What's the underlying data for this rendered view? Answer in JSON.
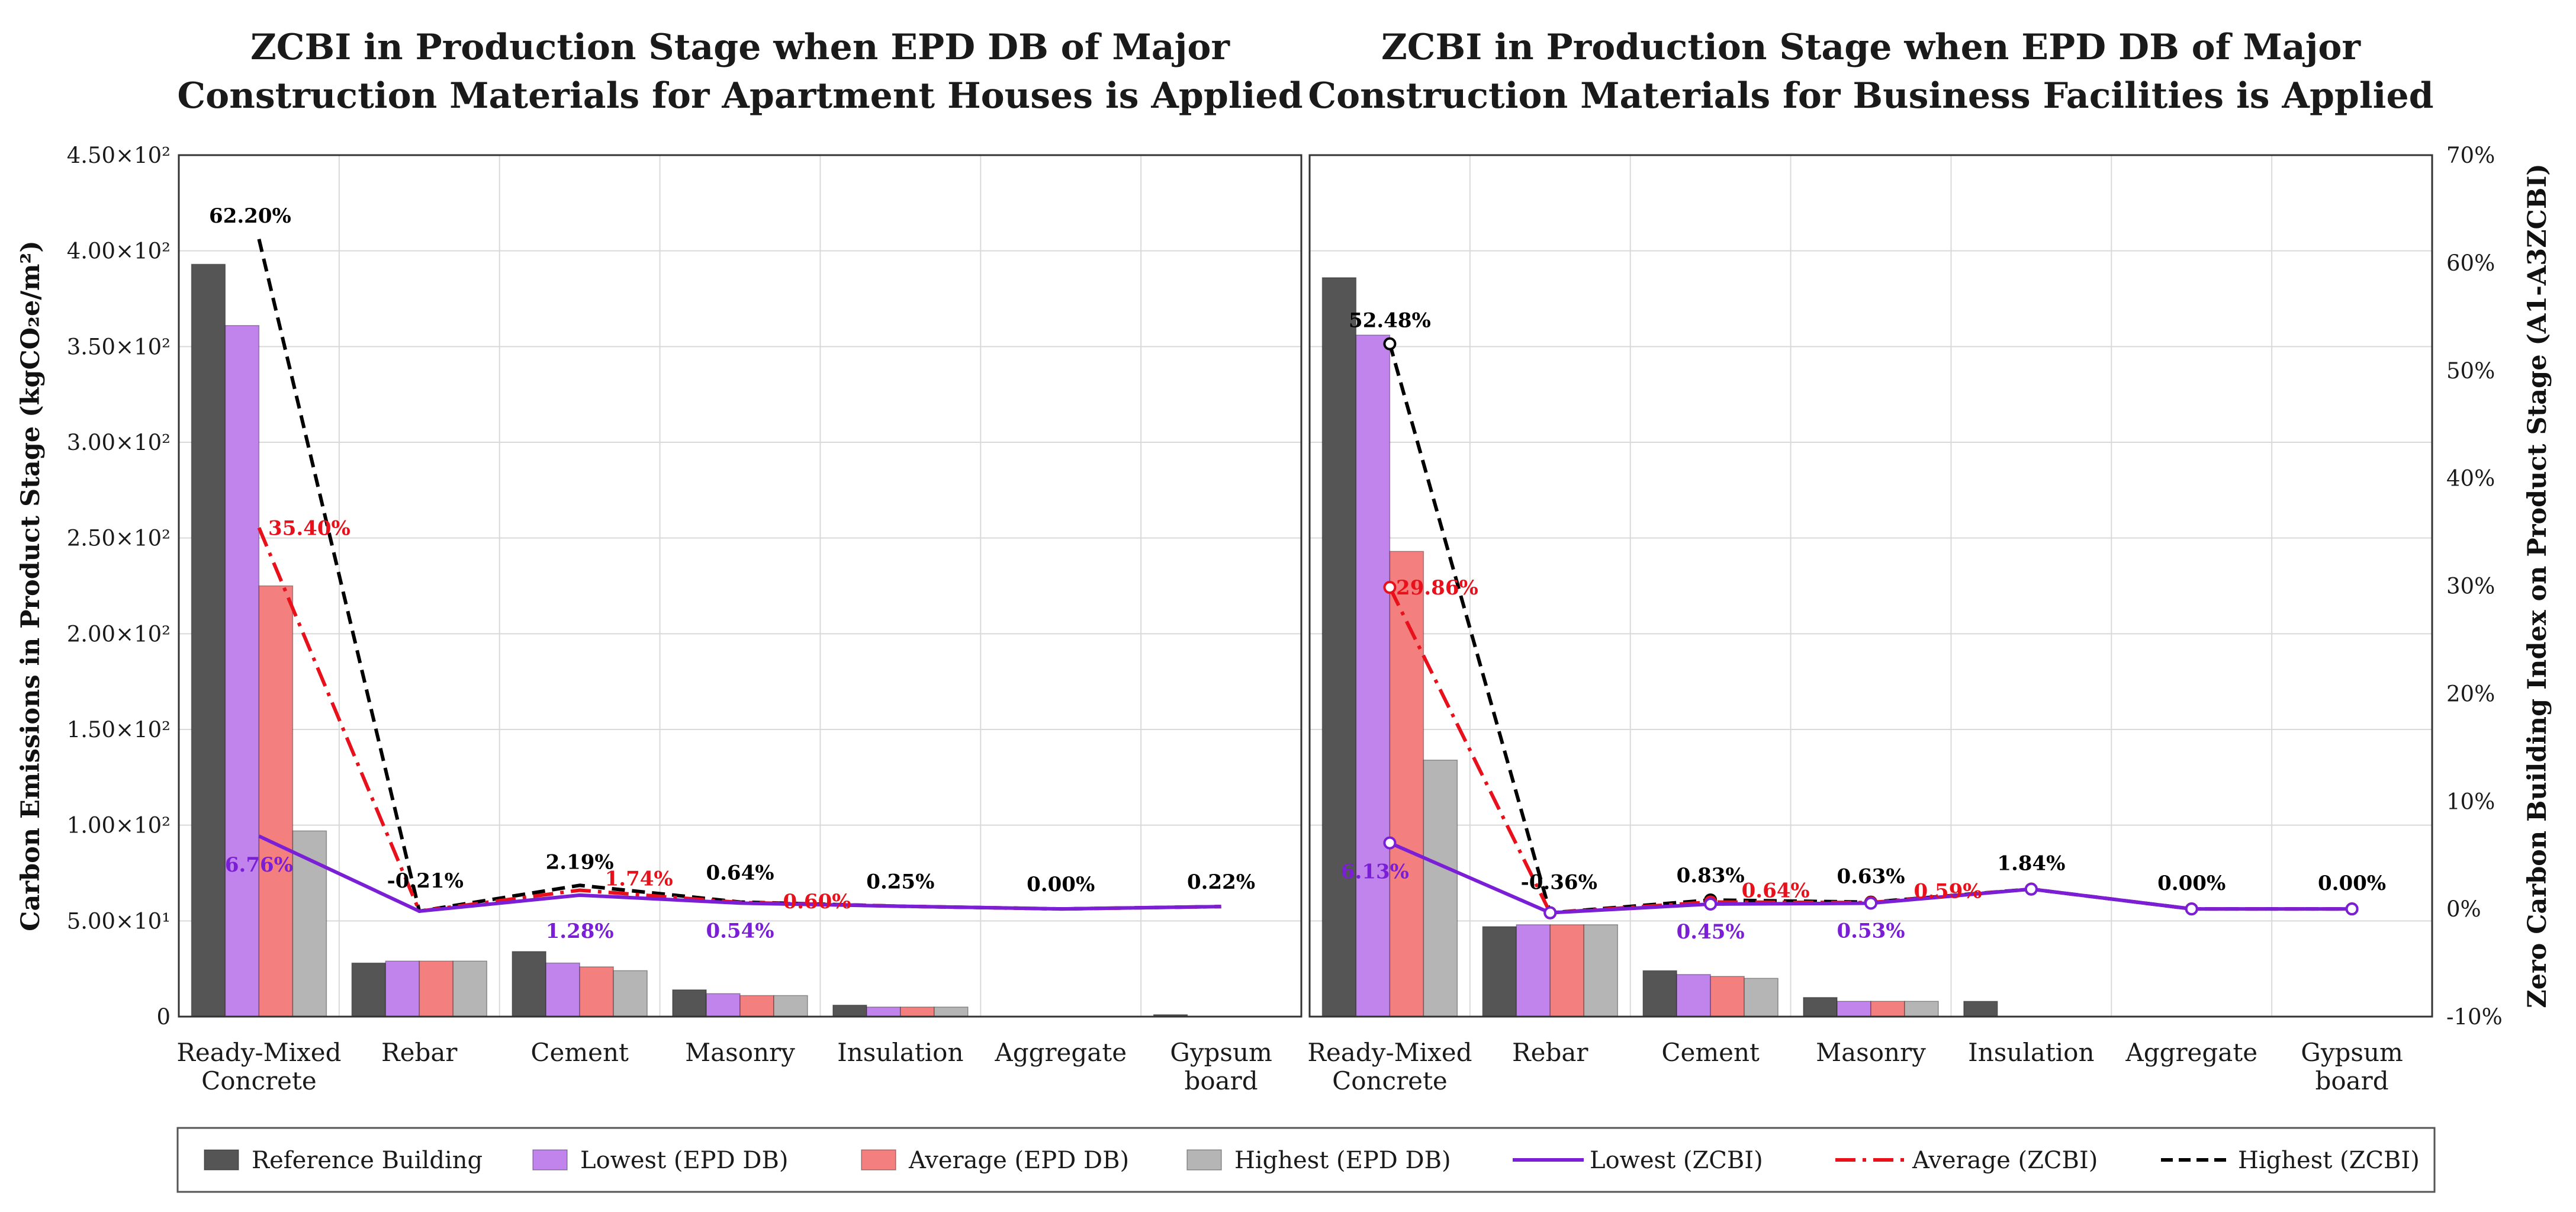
{
  "chart_data": {
    "type": "bar+line",
    "y_axis_left": {
      "label": "Carbon Emissions in Product Stage (kgCO₂e/m²)",
      "ylim": [
        0,
        450
      ],
      "ticks": [
        {
          "value": 0,
          "label": "0"
        },
        {
          "value": 50,
          "label": "5.00×10¹"
        },
        {
          "value": 100,
          "label": "1.00×10²"
        },
        {
          "value": 150,
          "label": "1.50×10²"
        },
        {
          "value": 200,
          "label": "2.00×10²"
        },
        {
          "value": 250,
          "label": "2.50×10²"
        },
        {
          "value": 300,
          "label": "3.00×10²"
        },
        {
          "value": 350,
          "label": "3.50×10²"
        },
        {
          "value": 400,
          "label": "4.00×10²"
        },
        {
          "value": 450,
          "label": "4.50×10²"
        }
      ]
    },
    "y_axis_right": {
      "label": "Zero Carbon Building Index on Product Stage (A1-A3ZCBI)",
      "ylim": [
        -10,
        70
      ],
      "ticks": [
        {
          "value": -10,
          "label": "-10%"
        },
        {
          "value": 0,
          "label": "0%"
        },
        {
          "value": 10,
          "label": "10%"
        },
        {
          "value": 20,
          "label": "20%"
        },
        {
          "value": 30,
          "label": "30%"
        },
        {
          "value": 40,
          "label": "40%"
        },
        {
          "value": 50,
          "label": "50%"
        },
        {
          "value": 60,
          "label": "60%"
        },
        {
          "value": 70,
          "label": "70%"
        }
      ]
    },
    "categories": [
      [
        "Ready-Mixed",
        "Concrete"
      ],
      [
        "Rebar"
      ],
      [
        "Cement"
      ],
      [
        "Masonry"
      ],
      [
        "Insulation"
      ],
      [
        "Aggregate"
      ],
      [
        "Gypsum",
        "board"
      ]
    ],
    "colors": {
      "reference": "#555555",
      "lowest_db": "#c184ec",
      "average_db": "#f47f7f",
      "highest_db": "#b5b5b5",
      "lowest_zcbi": "#7a1fd6",
      "average_zcbi": "#e8101a",
      "highest_zcbi": "#000000"
    },
    "legend": [
      {
        "key": "reference",
        "kind": "bar",
        "label": "Reference Building"
      },
      {
        "key": "lowest_db",
        "kind": "bar",
        "label": "Lowest (EPD DB)"
      },
      {
        "key": "average_db",
        "kind": "bar",
        "label": "Average (EPD DB)"
      },
      {
        "key": "highest_db",
        "kind": "bar",
        "label": "Highest (EPD DB)"
      },
      {
        "key": "lowest_zcbi",
        "kind": "solid",
        "label": "Lowest (ZCBI)"
      },
      {
        "key": "average_zcbi",
        "kind": "dashdot",
        "label": "Average (ZCBI)"
      },
      {
        "key": "highest_zcbi",
        "kind": "dash",
        "label": "Highest (ZCBI)"
      }
    ],
    "panels": [
      {
        "title_lines": [
          "ZCBI in Production Stage when EPD DB of Major",
          "Construction Materials for Apartment Houses is Applied"
        ],
        "bars": {
          "reference": [
            393,
            28,
            34,
            14,
            6,
            0,
            1
          ],
          "lowest_db": [
            361,
            29,
            28,
            12,
            5,
            0,
            0
          ],
          "average_db": [
            225,
            29,
            26,
            11,
            5,
            0,
            0
          ],
          "highest_db": [
            97,
            29,
            24,
            11,
            5,
            0,
            0
          ]
        },
        "zcbi": {
          "lowest": [
            6.76,
            -0.21,
            1.28,
            0.54,
            0.25,
            0.0,
            0.22
          ],
          "average": [
            35.4,
            -0.21,
            1.74,
            0.6,
            0.25,
            0.0,
            0.22
          ],
          "highest": [
            62.2,
            -0.21,
            2.19,
            0.64,
            0.25,
            0.0,
            0.22
          ]
        },
        "markers": false,
        "labels": [
          {
            "text": "62.20%",
            "cat": 0,
            "value": 62.2,
            "color": "highest_zcbi",
            "dx": -15,
            "dy": -28
          },
          {
            "text": "35.40%",
            "cat": 0,
            "value": 35.4,
            "color": "average_zcbi",
            "dx": 85,
            "dy": 12
          },
          {
            "text": "6.76%",
            "cat": 0,
            "value": 6.76,
            "color": "lowest_zcbi",
            "dx": 0,
            "dy": 60
          },
          {
            "text": "-0.21%",
            "cat": 1,
            "value": -0.21,
            "color": "highest_zcbi",
            "dx": 10,
            "dy": -40
          },
          {
            "text": "2.19%",
            "cat": 2,
            "value": 2.19,
            "color": "highest_zcbi",
            "dx": 0,
            "dy": -28
          },
          {
            "text": "1.74%",
            "cat": 2,
            "value": 1.74,
            "color": "average_zcbi",
            "dx": 100,
            "dy": -8
          },
          {
            "text": "1.28%",
            "cat": 2,
            "value": 1.28,
            "color": "lowest_zcbi",
            "dx": 0,
            "dy": 72
          },
          {
            "text": "0.64%",
            "cat": 3,
            "value": 0.64,
            "color": "highest_zcbi",
            "dx": 0,
            "dy": -38
          },
          {
            "text": "0.60%",
            "cat": 3,
            "value": 0.6,
            "color": "average_zcbi",
            "dx": 130,
            "dy": 10
          },
          {
            "text": "0.54%",
            "cat": 3,
            "value": 0.54,
            "color": "lowest_zcbi",
            "dx": 0,
            "dy": 58
          },
          {
            "text": "0.25%",
            "cat": 4,
            "value": 0.25,
            "color": "highest_zcbi",
            "dx": 0,
            "dy": -30
          },
          {
            "text": "0.00%",
            "cat": 5,
            "value": 0.0,
            "color": "highest_zcbi",
            "dx": 0,
            "dy": -30
          },
          {
            "text": "0.22%",
            "cat": 6,
            "value": 0.22,
            "color": "highest_zcbi",
            "dx": 0,
            "dy": -30
          }
        ]
      },
      {
        "title_lines": [
          "ZCBI in Production Stage when EPD DB of Major",
          "Construction Materials for Business Facilities is Applied"
        ],
        "bars": {
          "reference": [
            386,
            47,
            24,
            10,
            8,
            0,
            0
          ],
          "lowest_db": [
            356,
            48,
            22,
            8,
            0,
            0,
            0
          ],
          "average_db": [
            243,
            48,
            21,
            8,
            0,
            0,
            0
          ],
          "highest_db": [
            134,
            48,
            20,
            8,
            0,
            0,
            0
          ]
        },
        "zcbi": {
          "lowest": [
            6.13,
            -0.36,
            0.45,
            0.53,
            1.84,
            0.0,
            0.0
          ],
          "average": [
            29.86,
            -0.36,
            0.64,
            0.59,
            1.84,
            0.0,
            0.0
          ],
          "highest": [
            52.48,
            -0.36,
            0.83,
            0.63,
            1.84,
            0.0,
            0.0
          ]
        },
        "markers": true,
        "labels": [
          {
            "text": "52.48%",
            "cat": 0,
            "value": 52.48,
            "color": "highest_zcbi",
            "dx": 0,
            "dy": -28
          },
          {
            "text": "29.86%",
            "cat": 0,
            "value": 29.86,
            "color": "average_zcbi",
            "dx": 80,
            "dy": 12
          },
          {
            "text": "6.13%",
            "cat": 0,
            "value": 6.13,
            "color": "lowest_zcbi",
            "dx": -25,
            "dy": 60
          },
          {
            "text": "-0.36%",
            "cat": 1,
            "value": -0.36,
            "color": "highest_zcbi",
            "dx": 15,
            "dy": -40
          },
          {
            "text": "0.83%",
            "cat": 2,
            "value": 0.83,
            "color": "highest_zcbi",
            "dx": 0,
            "dy": -30
          },
          {
            "text": "0.64%",
            "cat": 2,
            "value": 0.64,
            "color": "average_zcbi",
            "dx": 110,
            "dy": -8
          },
          {
            "text": "0.45%",
            "cat": 2,
            "value": 0.45,
            "color": "lowest_zcbi",
            "dx": 0,
            "dy": 58
          },
          {
            "text": "0.63%",
            "cat": 3,
            "value": 0.63,
            "color": "highest_zcbi",
            "dx": 0,
            "dy": -32
          },
          {
            "text": "0.59%",
            "cat": 3,
            "value": 0.59,
            "color": "average_zcbi",
            "dx": 130,
            "dy": -8
          },
          {
            "text": "0.53%",
            "cat": 3,
            "value": 0.53,
            "color": "lowest_zcbi",
            "dx": 0,
            "dy": 58
          },
          {
            "text": "1.84%",
            "cat": 4,
            "value": 1.84,
            "color": "highest_zcbi",
            "dx": 0,
            "dy": -32
          },
          {
            "text": "0.00%",
            "cat": 5,
            "value": 0.0,
            "color": "highest_zcbi",
            "dx": 0,
            "dy": -32
          },
          {
            "text": "0.00%",
            "cat": 6,
            "value": 0.0,
            "color": "highest_zcbi",
            "dx": 0,
            "dy": -32
          }
        ]
      }
    ]
  }
}
